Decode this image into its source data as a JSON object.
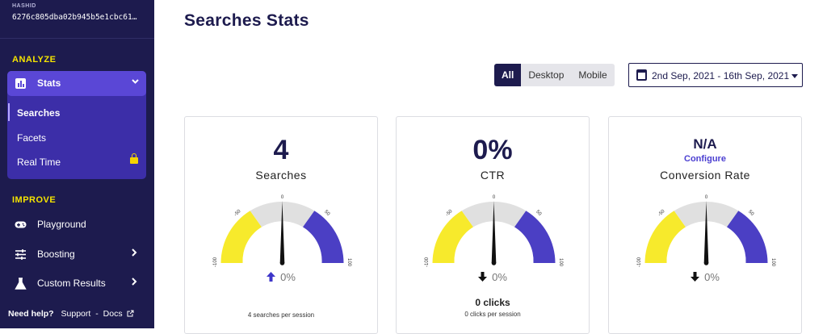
{
  "sidebar": {
    "hash_label": "HASHID",
    "hash_value": "6276c805dba02b945b5e1cbc61…",
    "analyze_title": "ANALYZE",
    "stats_label": "Stats",
    "stats_icon": "bar-chart-icon",
    "stats_items": [
      {
        "label": "Searches",
        "active": true
      },
      {
        "label": "Facets",
        "active": false
      },
      {
        "label": "Real Time",
        "active": false,
        "locked": true
      }
    ],
    "improve_title": "IMPROVE",
    "improve_items": [
      {
        "label": "Playground",
        "icon": "gamepad-icon"
      },
      {
        "label": "Boosting",
        "icon": "sliders-icon"
      },
      {
        "label": "Custom Results",
        "icon": "flask-icon"
      }
    ],
    "help_label": "Need help?",
    "support_label": "Support",
    "separator": "-",
    "docs_label": "Docs"
  },
  "main": {
    "title": "Searches Stats",
    "device_filter": {
      "options": [
        "All",
        "Desktop",
        "Mobile"
      ],
      "selected": "All"
    },
    "date_range": "2nd Sep, 2021 - 16th Sep, 2021",
    "gauge_ticks": {
      "minus100": "-100",
      "minus50": "-50",
      "zero": "0",
      "plus50": "50",
      "plus100": "100"
    },
    "cards": [
      {
        "value": "4",
        "label": "Searches",
        "delta": "0%",
        "delta_direction": "up",
        "delta_color": "#3d35c9",
        "footer_bold": "",
        "footer": "4 searches per session"
      },
      {
        "value": "0%",
        "label": "CTR",
        "delta": "0%",
        "delta_direction": "down",
        "delta_color": "#111111",
        "footer_bold": "0 clicks",
        "footer": "0 clicks per session"
      },
      {
        "value": "N/A",
        "configure": "Configure",
        "label": "Conversion Rate",
        "delta": "0%",
        "delta_direction": "down",
        "delta_color": "#111111",
        "footer_bold": "",
        "footer": ""
      }
    ]
  },
  "colors": {
    "sidebar_bg": "#1d1b4e",
    "accent": "#5a47d6",
    "yellow": "#f5e400",
    "gauge_left": "#f7ea2c",
    "gauge_right": "#4b3fc4",
    "gauge_mid": "#e0e0e0"
  }
}
